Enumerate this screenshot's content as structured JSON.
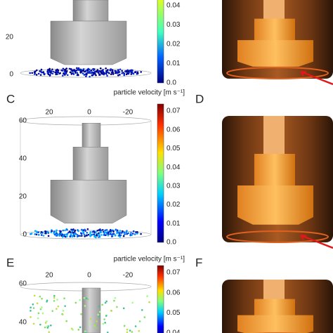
{
  "top": {
    "yticks": [
      "20",
      "0"
    ],
    "colorbar_ticks": [
      "0.04",
      "0.03",
      "0.02",
      "0.01",
      "0.0"
    ]
  },
  "panel_c": {
    "label": "C",
    "colorbar_title": "particle velocity [m s⁻¹]",
    "xticks": [
      "20",
      "0",
      "-20"
    ],
    "yticks": [
      "60",
      "40",
      "20",
      "0"
    ],
    "colorbar_ticks": [
      "0.07",
      "0.06",
      "0.05",
      "0.04",
      "0.03",
      "0.02",
      "0.01",
      "0.0"
    ]
  },
  "panel_d": {
    "label": "D"
  },
  "panel_e": {
    "label": "E",
    "colorbar_title": "particle velocity [m s⁻¹]",
    "xticks": [
      "20",
      "0",
      "-20"
    ],
    "yticks": [
      "60",
      "40"
    ],
    "colorbar_ticks": [
      "0.07",
      "0.06",
      "0.05",
      "0.04"
    ]
  },
  "panel_f": {
    "label": "F"
  }
}
